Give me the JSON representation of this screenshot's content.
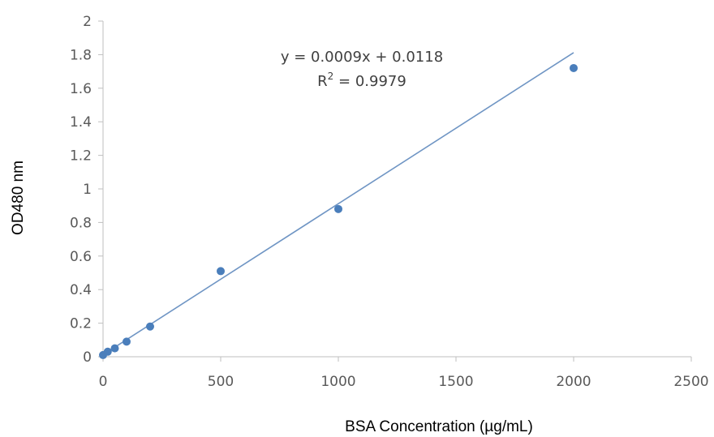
{
  "chart_data": {
    "type": "scatter",
    "xlabel": "BSA Concentration (µg/mL)",
    "ylabel": "OD480 nm",
    "xlim": [
      0,
      2500
    ],
    "ylim": [
      0,
      2
    ],
    "x_ticks": [
      0,
      500,
      1000,
      1500,
      2000,
      2500
    ],
    "y_ticks": [
      0,
      0.2,
      0.4,
      0.6,
      0.8,
      1,
      1.2,
      1.4,
      1.6,
      1.8,
      2
    ],
    "x_tick_labels": [
      "0",
      "500",
      "1000",
      "1500",
      "2000",
      "2500"
    ],
    "y_tick_labels": [
      "0",
      "0.2",
      "0.4",
      "0.6",
      "0.8",
      "1",
      "1.2",
      "1.4",
      "1.6",
      "1.8",
      "2"
    ],
    "grid": false,
    "legend": "none",
    "series": [
      {
        "points": [
          {
            "x": 0,
            "y": 0.01
          },
          {
            "x": 20,
            "y": 0.03
          },
          {
            "x": 50,
            "y": 0.05
          },
          {
            "x": 100,
            "y": 0.09
          },
          {
            "x": 200,
            "y": 0.18
          },
          {
            "x": 500,
            "y": 0.51
          },
          {
            "x": 1000,
            "y": 0.88
          },
          {
            "x": 2000,
            "y": 1.72
          }
        ],
        "color": "#4a7ebb"
      }
    ],
    "trendline": {
      "type": "linear",
      "slope": 0.0009,
      "intercept": 0.0118,
      "x_range": [
        0,
        2000
      ],
      "color": "#6f95c4",
      "equation_text": "y = 0.0009x + 0.0118",
      "r2_prefix": "R",
      "r2_sup": "2",
      "r2_suffix": " = 0.9979"
    },
    "axis_color": "#bfbfbf"
  }
}
